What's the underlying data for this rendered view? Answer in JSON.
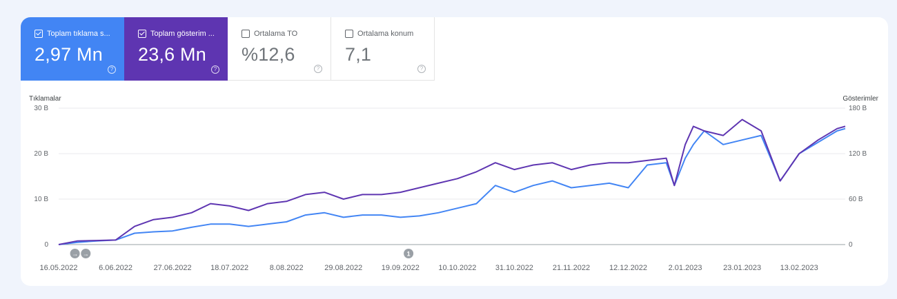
{
  "cards": [
    {
      "label": "Toplam tıklama s...",
      "value": "2,97 Mn",
      "checked": true,
      "color": "#4285f4"
    },
    {
      "label": "Toplam gösterim ...",
      "value": "23,6 Mn",
      "checked": true,
      "color": "#5e35b1"
    },
    {
      "label": "Ortalama TO",
      "value": "%12,6",
      "checked": false
    },
    {
      "label": "Ortalama konum",
      "value": "7,1",
      "checked": false
    }
  ],
  "help_glyph": "?",
  "chart_data": {
    "type": "line",
    "left_axis_title": "Tıklamalar",
    "right_axis_title": "Gösterimler",
    "left_ticks": [
      "0",
      "10 B",
      "20 B",
      "30 B"
    ],
    "left_tick_values": [
      0,
      10000,
      20000,
      30000
    ],
    "right_ticks": [
      "0",
      "60 B",
      "120 B",
      "180 B"
    ],
    "right_tick_values": [
      0,
      60000,
      120000,
      180000
    ],
    "ylim_left": [
      0,
      30000
    ],
    "ylim_right": [
      0,
      180000
    ],
    "grid": true,
    "x_labels": [
      "16.05.2022",
      "6.06.2022",
      "27.06.2022",
      "18.07.2022",
      "8.08.2022",
      "29.08.2022",
      "19.09.2022",
      "10.10.2022",
      "31.10.2022",
      "21.11.2022",
      "12.12.2022",
      "2.01.2023",
      "23.01.2023",
      "13.02.2023"
    ],
    "x_start": "16.05.2022",
    "x_end": "2.03.2023",
    "annotations": [
      {
        "date": "22.05.2022",
        "label": "→"
      },
      {
        "date": "26.05.2022",
        "label": "→"
      },
      {
        "date": "22.09.2022",
        "label": "1"
      }
    ],
    "series": [
      {
        "name": "Toplam tıklama sayısı",
        "axis": "left",
        "color": "#4285f4",
        "points": [
          [
            "16.05.2022",
            0
          ],
          [
            "23.05.2022",
            500
          ],
          [
            "30.05.2022",
            800
          ],
          [
            "6.06.2022",
            1000
          ],
          [
            "13.06.2022",
            2500
          ],
          [
            "20.06.2022",
            2800
          ],
          [
            "27.06.2022",
            3000
          ],
          [
            "4.07.2022",
            3800
          ],
          [
            "11.07.2022",
            4500
          ],
          [
            "18.07.2022",
            4500
          ],
          [
            "25.07.2022",
            4000
          ],
          [
            "1.08.2022",
            4500
          ],
          [
            "8.08.2022",
            5000
          ],
          [
            "15.08.2022",
            6500
          ],
          [
            "22.08.2022",
            7000
          ],
          [
            "29.08.2022",
            6000
          ],
          [
            "5.09.2022",
            6500
          ],
          [
            "12.09.2022",
            6500
          ],
          [
            "19.09.2022",
            6000
          ],
          [
            "26.09.2022",
            6300
          ],
          [
            "3.10.2022",
            7000
          ],
          [
            "10.10.2022",
            8000
          ],
          [
            "17.10.2022",
            9000
          ],
          [
            "24.10.2022",
            13000
          ],
          [
            "31.10.2022",
            11500
          ],
          [
            "7.11.2022",
            13000
          ],
          [
            "14.11.2022",
            14000
          ],
          [
            "21.11.2022",
            12500
          ],
          [
            "28.11.2022",
            13000
          ],
          [
            "5.12.2022",
            13500
          ],
          [
            "12.12.2022",
            12500
          ],
          [
            "19.12.2022",
            17500
          ],
          [
            "26.12.2022",
            18000
          ],
          [
            "29.12.2022",
            13000
          ],
          [
            "2.01.2023",
            19000
          ],
          [
            "5.01.2023",
            22000
          ],
          [
            "9.01.2023",
            25000
          ],
          [
            "16.01.2023",
            22000
          ],
          [
            "23.01.2023",
            23000
          ],
          [
            "30.01.2023",
            24000
          ],
          [
            "6.02.2023",
            14000
          ],
          [
            "13.02.2023",
            20000
          ],
          [
            "20.02.2023",
            22500
          ],
          [
            "27.02.2023",
            25000
          ],
          [
            "2.03.2023",
            25500
          ]
        ]
      },
      {
        "name": "Toplam gösterim sayısı",
        "axis": "right",
        "color": "#5e35b1",
        "points": [
          [
            "16.05.2022",
            0
          ],
          [
            "23.05.2022",
            4800
          ],
          [
            "30.05.2022",
            5400
          ],
          [
            "6.06.2022",
            6000
          ],
          [
            "13.06.2022",
            24000
          ],
          [
            "20.06.2022",
            33000
          ],
          [
            "27.06.2022",
            36000
          ],
          [
            "4.07.2022",
            42000
          ],
          [
            "11.07.2022",
            54000
          ],
          [
            "18.07.2022",
            51000
          ],
          [
            "25.07.2022",
            45000
          ],
          [
            "1.08.2022",
            54000
          ],
          [
            "8.08.2022",
            57000
          ],
          [
            "15.08.2022",
            66000
          ],
          [
            "22.08.2022",
            69000
          ],
          [
            "29.08.2022",
            60000
          ],
          [
            "5.09.2022",
            66000
          ],
          [
            "12.09.2022",
            66000
          ],
          [
            "19.09.2022",
            69000
          ],
          [
            "26.09.2022",
            75000
          ],
          [
            "3.10.2022",
            81000
          ],
          [
            "10.10.2022",
            87000
          ],
          [
            "17.10.2022",
            96000
          ],
          [
            "24.10.2022",
            108000
          ],
          [
            "31.10.2022",
            99000
          ],
          [
            "7.11.2022",
            105000
          ],
          [
            "14.11.2022",
            108000
          ],
          [
            "21.11.2022",
            99000
          ],
          [
            "28.11.2022",
            105000
          ],
          [
            "5.12.2022",
            108000
          ],
          [
            "12.12.2022",
            108000
          ],
          [
            "19.12.2022",
            111000
          ],
          [
            "26.12.2022",
            114000
          ],
          [
            "29.12.2022",
            78000
          ],
          [
            "2.01.2023",
            132000
          ],
          [
            "5.01.2023",
            156000
          ],
          [
            "9.01.2023",
            150000
          ],
          [
            "16.01.2023",
            144000
          ],
          [
            "23.01.2023",
            165000
          ],
          [
            "30.01.2023",
            150000
          ],
          [
            "6.02.2023",
            84000
          ],
          [
            "13.02.2023",
            120000
          ],
          [
            "20.02.2023",
            138000
          ],
          [
            "27.02.2023",
            153000
          ],
          [
            "2.03.2023",
            156000
          ]
        ]
      }
    ]
  }
}
